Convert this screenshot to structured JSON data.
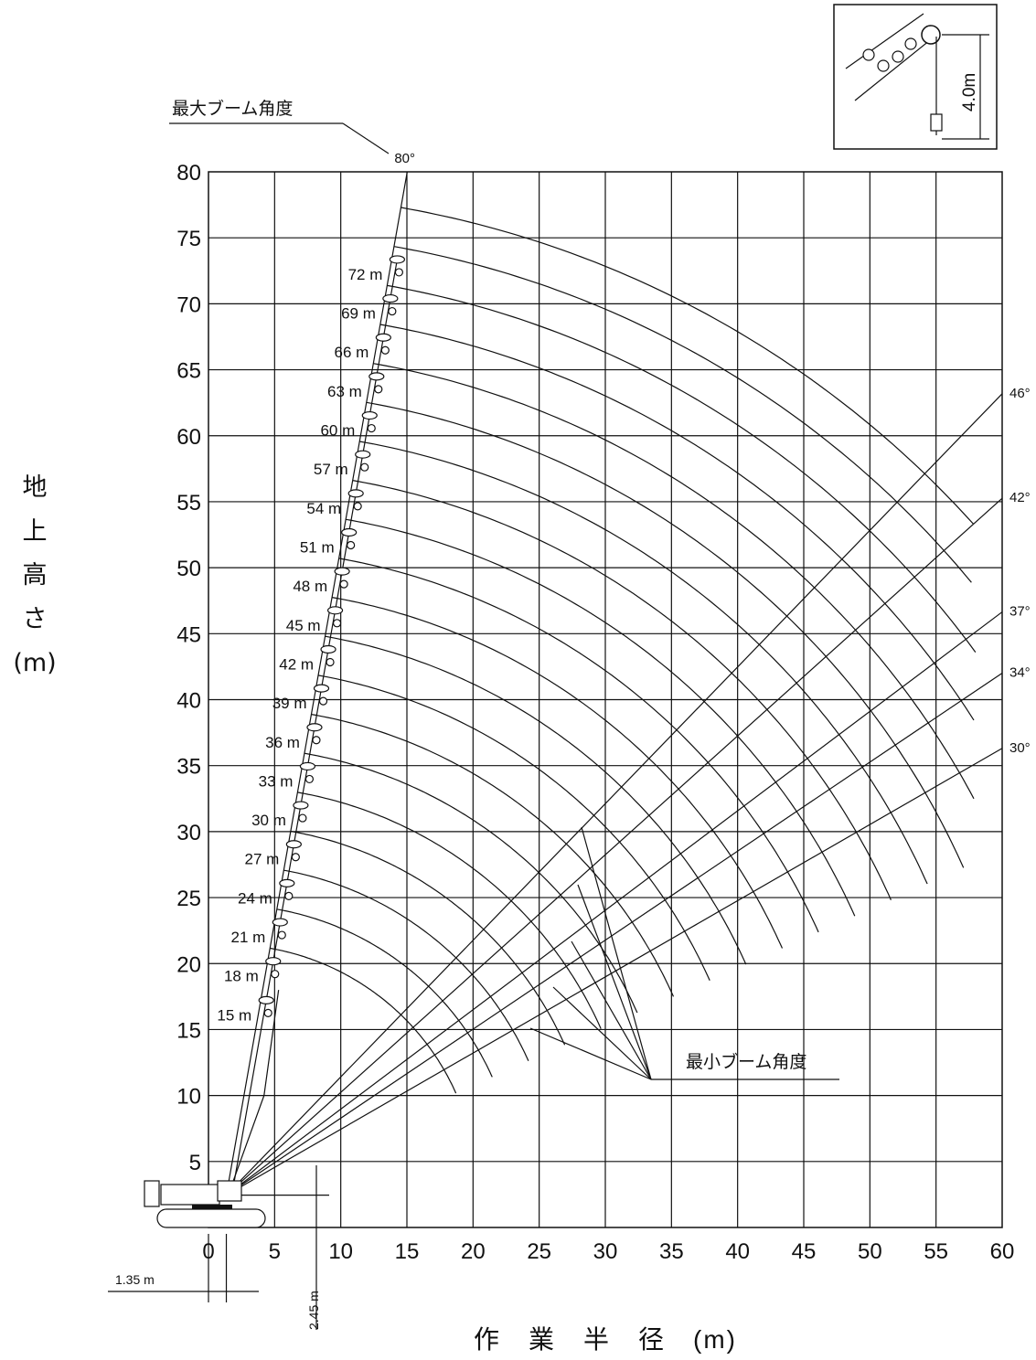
{
  "chart_data": {
    "type": "diagram",
    "title": "",
    "xlabel": "作　業　半　径　(m)",
    "ylabel": [
      "地",
      "上",
      "高",
      "さ",
      "(m)"
    ],
    "xlim": [
      0,
      60
    ],
    "ylim": [
      0,
      80
    ],
    "x_ticks": [
      "0",
      "5",
      "10",
      "15",
      "20",
      "25",
      "30",
      "35",
      "40",
      "45",
      "50",
      "55",
      "60"
    ],
    "y_ticks": [
      "5",
      "10",
      "15",
      "20",
      "25",
      "30",
      "35",
      "40",
      "45",
      "50",
      "55",
      "60",
      "65",
      "70",
      "75",
      "80"
    ],
    "boom_pivot": {
      "x": 1.35,
      "y": 2.45
    },
    "boom_tip_offset": 4.0,
    "max_boom_angle": {
      "label": "最大ブーム角度",
      "angle": "80°"
    },
    "min_boom_angle": {
      "label": "最小ブーム角度",
      "angles": [
        "46°",
        "42°",
        "37°",
        "34°",
        "30°"
      ]
    },
    "boom_lengths": [
      "15 m",
      "18 m",
      "21 m",
      "24 m",
      "27 m",
      "30 m",
      "33 m",
      "36 m",
      "39 m",
      "42 m",
      "45 m",
      "48 m",
      "51 m",
      "54 m",
      "57 m",
      "60 m",
      "63 m",
      "66 m",
      "69 m",
      "72 m"
    ],
    "boom_length_values": [
      15,
      18,
      21,
      24,
      27,
      30,
      33,
      36,
      39,
      42,
      45,
      48,
      51,
      54,
      57,
      60,
      63,
      66,
      69,
      72
    ],
    "dimensions": {
      "pivot_x": "1.35 m",
      "pivot_y": "2.45 m",
      "hook_drop": "4.0m"
    }
  }
}
